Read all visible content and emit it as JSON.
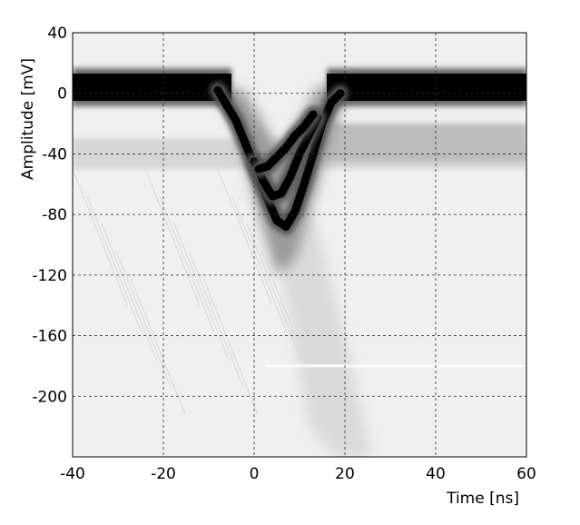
{
  "chart_data": {
    "type": "heatmap",
    "xlabel": "Time [ns]",
    "ylabel": "Amplitude [mV]",
    "xlim": [
      -40,
      60
    ],
    "ylim": [
      -240,
      40
    ],
    "xticks": [
      -40,
      -20,
      0,
      20,
      40,
      60
    ],
    "yticks": [
      40,
      0,
      -40,
      -80,
      -120,
      -160,
      -200
    ],
    "grid": true,
    "colors": {
      "background": "#f0f0f0",
      "density_high": "#000000",
      "density_low": "#c8c8c8"
    },
    "dense_bands": [
      {
        "name": "baseline",
        "x": [
          -40,
          -5
        ],
        "y_center": 4,
        "y_halfwidth": 9
      },
      {
        "name": "baseline-recovery",
        "x": [
          16,
          60
        ],
        "y_center": 4,
        "y_halfwidth": 9
      },
      {
        "name": "main-pulse",
        "points": [
          [
            -8,
            2
          ],
          [
            -4,
            -18
          ],
          [
            -1,
            -40
          ],
          [
            1,
            -55
          ],
          [
            3,
            -70
          ],
          [
            5,
            -84
          ],
          [
            7,
            -88
          ],
          [
            9,
            -78
          ],
          [
            11,
            -60
          ],
          [
            13,
            -40
          ],
          [
            15,
            -20
          ],
          [
            17,
            -6
          ],
          [
            19,
            0
          ]
        ]
      },
      {
        "name": "secondary-pulse",
        "points": [
          [
            0,
            -45
          ],
          [
            2,
            -58
          ],
          [
            4,
            -68
          ],
          [
            6,
            -66
          ],
          [
            8,
            -55
          ],
          [
            10,
            -40
          ],
          [
            12,
            -28
          ],
          [
            14,
            -16
          ]
        ]
      },
      {
        "name": "tertiary-pulse",
        "points": [
          [
            1,
            -50
          ],
          [
            3,
            -48
          ],
          [
            5,
            -42
          ],
          [
            7,
            -36
          ],
          [
            9,
            -28
          ],
          [
            11,
            -22
          ],
          [
            13,
            -14
          ]
        ]
      }
    ]
  }
}
